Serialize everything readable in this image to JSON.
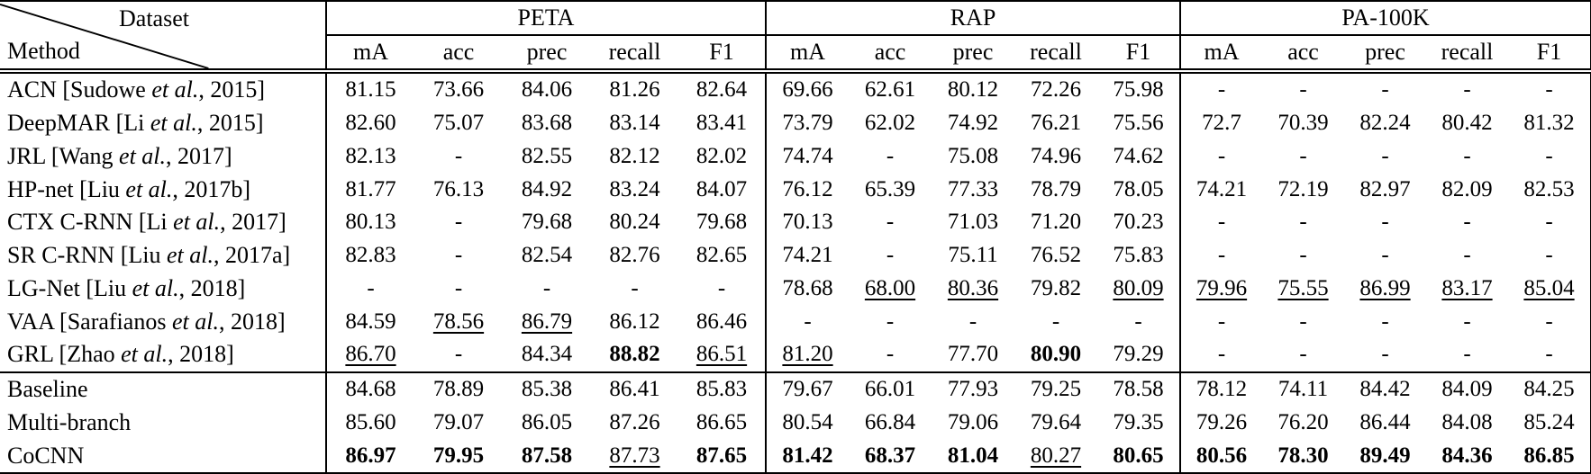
{
  "corner": {
    "dataset_label": "Dataset",
    "method_label": "Method"
  },
  "groups": [
    {
      "label": "PETA"
    },
    {
      "label": "RAP"
    },
    {
      "label": "PA-100K"
    }
  ],
  "metrics": [
    "mA",
    "acc",
    "prec",
    "recall",
    "F1"
  ],
  "rows": [
    {
      "method_pre": "ACN [Sudowe ",
      "method_italic": "et al.",
      "method_post": ", 2015]",
      "values": [
        "81.15",
        "73.66",
        "84.06",
        "81.26",
        "82.64",
        "69.66",
        "62.61",
        "80.12",
        "72.26",
        "75.98",
        "-",
        "-",
        "-",
        "-",
        "-"
      ],
      "styles": [
        "",
        "",
        "",
        "",
        "",
        "",
        "",
        "",
        "",
        "",
        "",
        "",
        "",
        "",
        ""
      ]
    },
    {
      "method_pre": "DeepMAR [Li ",
      "method_italic": "et al.",
      "method_post": ", 2015]",
      "values": [
        "82.60",
        "75.07",
        "83.68",
        "83.14",
        "83.41",
        "73.79",
        "62.02",
        "74.92",
        "76.21",
        "75.56",
        "72.7",
        "70.39",
        "82.24",
        "80.42",
        "81.32"
      ],
      "styles": [
        "",
        "",
        "",
        "",
        "",
        "",
        "",
        "",
        "",
        "",
        "",
        "",
        "",
        "",
        ""
      ]
    },
    {
      "method_pre": "JRL [Wang ",
      "method_italic": "et al.",
      "method_post": ", 2017]",
      "values": [
        "82.13",
        "-",
        "82.55",
        "82.12",
        "82.02",
        "74.74",
        "-",
        "75.08",
        "74.96",
        "74.62",
        "-",
        "-",
        "-",
        "-",
        "-"
      ],
      "styles": [
        "",
        "",
        "",
        "",
        "",
        "",
        "",
        "",
        "",
        "",
        "",
        "",
        "",
        "",
        ""
      ]
    },
    {
      "method_pre": "HP-net [Liu ",
      "method_italic": "et al.",
      "method_post": ", 2017b]",
      "values": [
        "81.77",
        "76.13",
        "84.92",
        "83.24",
        "84.07",
        "76.12",
        "65.39",
        "77.33",
        "78.79",
        "78.05",
        "74.21",
        "72.19",
        "82.97",
        "82.09",
        "82.53"
      ],
      "styles": [
        "",
        "",
        "",
        "",
        "",
        "",
        "",
        "",
        "",
        "",
        "",
        "",
        "",
        "",
        ""
      ]
    },
    {
      "method_pre": "CTX C-RNN [Li ",
      "method_italic": "et al.",
      "method_post": ", 2017]",
      "values": [
        "80.13",
        "-",
        "79.68",
        "80.24",
        "79.68",
        "70.13",
        "-",
        "71.03",
        "71.20",
        "70.23",
        "-",
        "-",
        "-",
        "-",
        "-"
      ],
      "styles": [
        "",
        "",
        "",
        "",
        "",
        "",
        "",
        "",
        "",
        "",
        "",
        "",
        "",
        "",
        ""
      ]
    },
    {
      "method_pre": "SR C-RNN [Liu ",
      "method_italic": "et al.",
      "method_post": ", 2017a]",
      "values": [
        "82.83",
        "-",
        "82.54",
        "82.76",
        "82.65",
        "74.21",
        "-",
        "75.11",
        "76.52",
        "75.83",
        "-",
        "-",
        "-",
        "-",
        "-"
      ],
      "styles": [
        "",
        "",
        "",
        "",
        "",
        "",
        "",
        "",
        "",
        "",
        "",
        "",
        "",
        "",
        ""
      ]
    },
    {
      "method_pre": "LG-Net [Liu ",
      "method_italic": "et al.",
      "method_post": ", 2018]",
      "values": [
        "-",
        "-",
        "-",
        "-",
        "-",
        "78.68",
        "68.00",
        "80.36",
        "79.82",
        "80.09",
        "79.96",
        "75.55",
        "86.99",
        "83.17",
        "85.04"
      ],
      "styles": [
        "",
        "",
        "",
        "",
        "",
        "",
        "u",
        "u",
        "",
        "u",
        "u",
        "u",
        "u",
        "u",
        "u"
      ]
    },
    {
      "method_pre": "VAA [Sarafianos ",
      "method_italic": "et al.",
      "method_post": ", 2018]",
      "values": [
        "84.59",
        "78.56",
        "86.79",
        "86.12",
        "86.46",
        "-",
        "-",
        "-",
        "-",
        "-",
        "-",
        "-",
        "-",
        "-",
        "-"
      ],
      "styles": [
        "",
        "u",
        "u",
        "",
        "",
        "",
        "",
        "",
        "",
        "",
        "",
        "",
        "",
        "",
        ""
      ]
    },
    {
      "method_pre": "GRL [Zhao ",
      "method_italic": "et al.",
      "method_post": ", 2018]",
      "values": [
        "86.70",
        "-",
        "84.34",
        "88.82",
        "86.51",
        "81.20",
        "-",
        "77.70",
        "80.90",
        "79.29",
        "-",
        "-",
        "-",
        "-",
        "-"
      ],
      "styles": [
        "u",
        "",
        "",
        "b",
        "u",
        "u",
        "",
        "",
        "b",
        "",
        "",
        "",
        "",
        "",
        ""
      ]
    },
    {
      "method_pre": "Baseline",
      "method_italic": "",
      "method_post": "",
      "separator_before": true,
      "values": [
        "84.68",
        "78.89",
        "85.38",
        "86.41",
        "85.83",
        "79.67",
        "66.01",
        "77.93",
        "79.25",
        "78.58",
        "78.12",
        "74.11",
        "84.42",
        "84.09",
        "84.25"
      ],
      "styles": [
        "",
        "",
        "",
        "",
        "",
        "",
        "",
        "",
        "",
        "",
        "",
        "",
        "",
        "",
        ""
      ]
    },
    {
      "method_pre": "Multi-branch",
      "method_italic": "",
      "method_post": "",
      "values": [
        "85.60",
        "79.07",
        "86.05",
        "87.26",
        "86.65",
        "80.54",
        "66.84",
        "79.06",
        "79.64",
        "79.35",
        "79.26",
        "76.20",
        "86.44",
        "84.08",
        "85.24"
      ],
      "styles": [
        "",
        "",
        "",
        "",
        "",
        "",
        "",
        "",
        "",
        "",
        "",
        "",
        "",
        "",
        ""
      ]
    },
    {
      "method_pre": "CoCNN",
      "method_italic": "",
      "method_post": "",
      "values": [
        "86.97",
        "79.95",
        "87.58",
        "87.73",
        "87.65",
        "81.42",
        "68.37",
        "81.04",
        "80.27",
        "80.65",
        "80.56",
        "78.30",
        "89.49",
        "84.36",
        "86.85"
      ],
      "styles": [
        "b",
        "b",
        "b",
        "u",
        "b",
        "b",
        "b",
        "b",
        "u",
        "b",
        "b",
        "b",
        "b",
        "b",
        "b"
      ]
    }
  ]
}
